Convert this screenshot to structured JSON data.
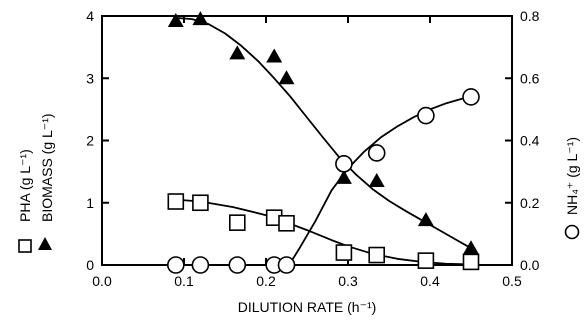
{
  "chart_data": {
    "type": "scatter",
    "xlabel": "DILUTION RATE (h⁻¹)",
    "ylabel_left": "PHA (g L⁻¹) BIOMASS (g L⁻¹)",
    "ylabel_right": "NH₄⁺ (g L⁻¹)",
    "xlim": [
      0.0,
      0.5
    ],
    "ylim_left": [
      0,
      4
    ],
    "ylim_right": [
      0.0,
      0.8
    ],
    "grid": false,
    "x_ticks": [
      "0.0",
      "0.1",
      "0.2",
      "0.3",
      "0.4",
      "0.5"
    ],
    "y_left_ticks": [
      "0",
      "1",
      "2",
      "3",
      "4"
    ],
    "y_right_ticks": [
      "0.0",
      "0.2",
      "0.4",
      "0.6",
      "0.8"
    ],
    "legend_labels": {
      "pha": "PHA (g L⁻¹)",
      "biomass": "BIOMASS (g L⁻¹)",
      "nh4": "NH₄⁺ (g L⁻¹)"
    },
    "series": [
      {
        "key": "pha",
        "marker": "open-square",
        "axis": "left",
        "x": [
          0.09,
          0.12,
          0.165,
          0.21,
          0.225,
          0.295,
          0.335,
          0.395,
          0.45
        ],
        "y": [
          1.02,
          1.0,
          0.68,
          0.76,
          0.67,
          0.2,
          0.16,
          0.07,
          0.05
        ]
      },
      {
        "key": "biomass",
        "marker": "filled-triangle",
        "axis": "left",
        "x": [
          0.09,
          0.12,
          0.165,
          0.21,
          0.225,
          0.295,
          0.335,
          0.395,
          0.45
        ],
        "y": [
          3.92,
          3.95,
          3.4,
          3.35,
          3.0,
          1.4,
          1.35,
          0.72,
          0.27
        ]
      },
      {
        "key": "nh4",
        "marker": "open-circle",
        "axis": "right",
        "x": [
          0.09,
          0.12,
          0.165,
          0.21,
          0.225,
          0.295,
          0.335,
          0.395,
          0.45
        ],
        "y": [
          0.0,
          0.0,
          0.0,
          0.0,
          0.0,
          0.325,
          0.36,
          0.48,
          0.54
        ]
      }
    ],
    "fit_curves": [
      {
        "key": "pha",
        "axis": "left",
        "x": [
          0.09,
          0.12,
          0.16,
          0.2,
          0.22,
          0.25,
          0.28,
          0.3,
          0.33,
          0.36,
          0.39,
          0.42,
          0.45
        ],
        "y": [
          1.05,
          1.02,
          0.93,
          0.8,
          0.71,
          0.56,
          0.4,
          0.3,
          0.18,
          0.1,
          0.05,
          0.02,
          0.01
        ]
      },
      {
        "key": "biomass",
        "axis": "left",
        "x": [
          0.09,
          0.11,
          0.13,
          0.15,
          0.17,
          0.19,
          0.21,
          0.23,
          0.25,
          0.27,
          0.29,
          0.31,
          0.33,
          0.35,
          0.37,
          0.39,
          0.41,
          0.43,
          0.45
        ],
        "y": [
          3.97,
          3.95,
          3.87,
          3.72,
          3.52,
          3.28,
          3.0,
          2.7,
          2.37,
          2.04,
          1.72,
          1.45,
          1.22,
          1.03,
          0.87,
          0.72,
          0.57,
          0.42,
          0.27
        ]
      },
      {
        "key": "nh4",
        "axis": "right",
        "x": [
          0.228,
          0.24,
          0.26,
          0.28,
          0.3,
          0.32,
          0.34,
          0.36,
          0.38,
          0.4,
          0.42,
          0.44,
          0.45
        ],
        "y": [
          0.0,
          0.05,
          0.14,
          0.24,
          0.31,
          0.365,
          0.41,
          0.445,
          0.475,
          0.5,
          0.52,
          0.535,
          0.54
        ]
      }
    ]
  }
}
